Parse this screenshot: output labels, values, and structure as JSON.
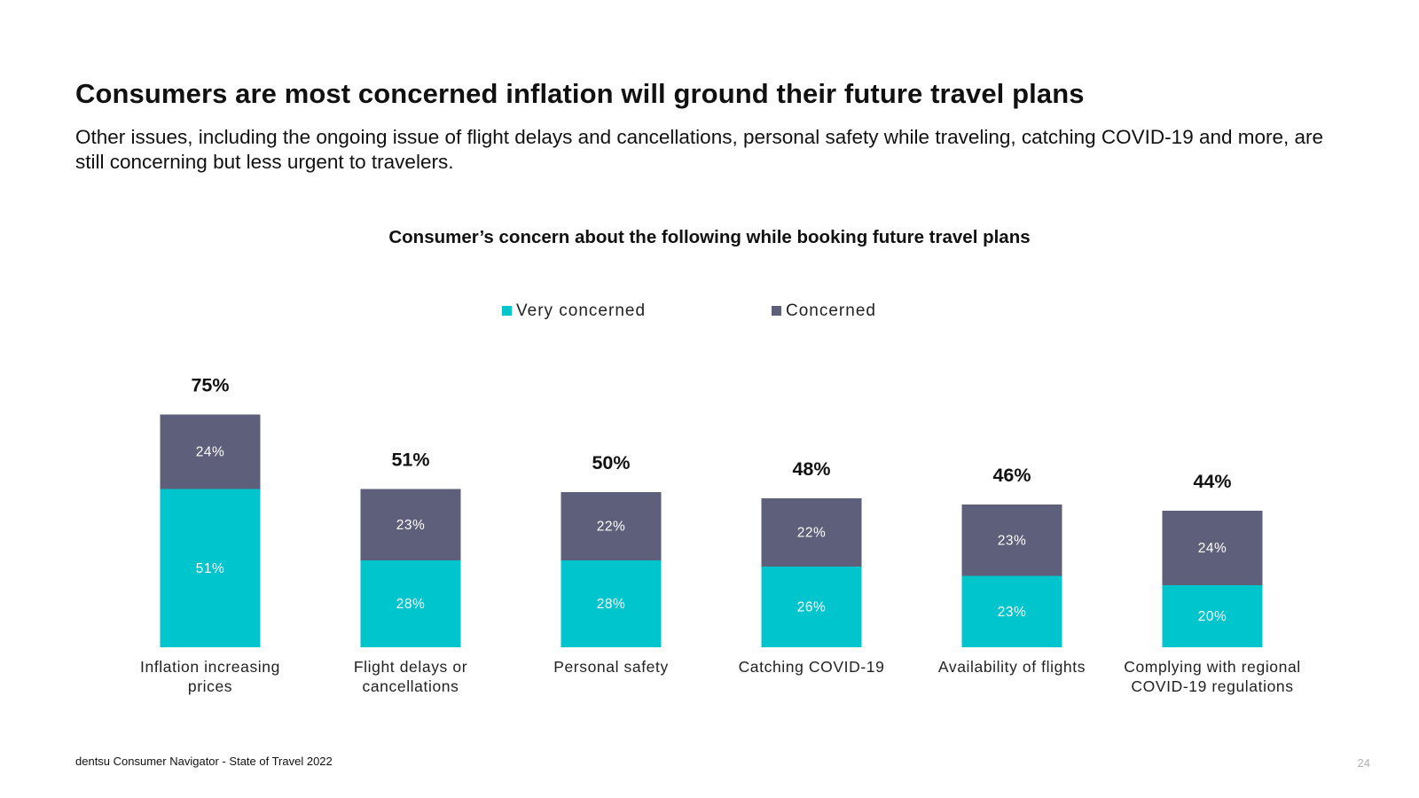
{
  "page": {
    "headline": "Consumers are most concerned inflation will ground their future travel plans",
    "subhead": "Other issues, including the ongoing issue of flight delays and cancellations, personal safety while traveling, catching COVID-19 and more, are still concerning but less urgent to travelers.",
    "footer_source": "dentsu Consumer Navigator - State of Travel 2022",
    "page_number": "24"
  },
  "chart_data": {
    "type": "bar",
    "stacked": true,
    "title": "Consumer’s concern about the following while booking future travel plans",
    "categories": [
      [
        "Inflation increasing",
        "prices"
      ],
      [
        "Flight delays or",
        "cancellations"
      ],
      [
        "Personal safety"
      ],
      [
        "Catching COVID-19"
      ],
      [
        "Availability of flights"
      ],
      [
        "Complying with regional",
        "COVID-19 regulations"
      ]
    ],
    "series": [
      {
        "name": "Very concerned",
        "color": "#00C5CD",
        "values": [
          51,
          28,
          28,
          26,
          23,
          20
        ]
      },
      {
        "name": "Concerned",
        "color": "#5E5F7A",
        "values": [
          24,
          23,
          22,
          22,
          23,
          24
        ]
      }
    ],
    "totals": [
      75,
      51,
      50,
      48,
      46,
      44
    ],
    "value_suffix": "%",
    "xlabel": "",
    "ylabel": "",
    "legend": "top-center",
    "grid": false
  }
}
